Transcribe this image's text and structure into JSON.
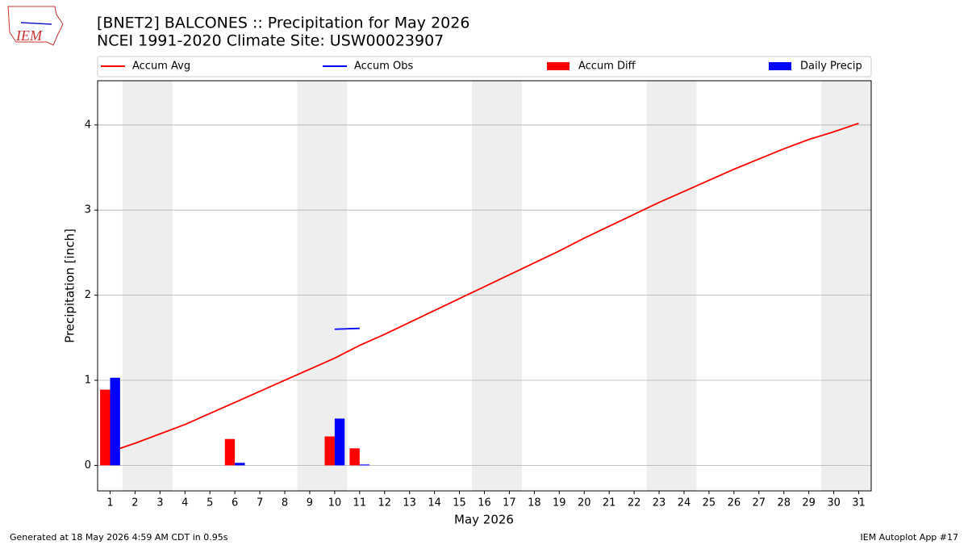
{
  "chart_data": {
    "type": "bar",
    "title": "[BNET2] BALCONES :: Precipitation for May 2026",
    "subtitle": "NCEI 1991-2020 Climate Site: USW00023907",
    "logo_text": "IEM",
    "xlabel": "May 2026",
    "ylabel": "Precipitation [inch]",
    "footer_left": "Generated at 18 May 2026 4:59 AM CDT in 0.95s",
    "footer_right": "IEM Autoplot App #17",
    "x": [
      1,
      2,
      3,
      4,
      5,
      6,
      7,
      8,
      9,
      10,
      11,
      12,
      13,
      14,
      15,
      16,
      17,
      18,
      19,
      20,
      21,
      22,
      23,
      24,
      25,
      26,
      27,
      28,
      29,
      30,
      31
    ],
    "xlim": [
      0.5,
      31.5
    ],
    "xticks": [
      1,
      2,
      3,
      4,
      5,
      6,
      7,
      8,
      9,
      10,
      11,
      12,
      13,
      14,
      15,
      16,
      17,
      18,
      19,
      20,
      21,
      22,
      23,
      24,
      25,
      26,
      27,
      28,
      29,
      30,
      31
    ],
    "ylim": [
      -0.3,
      4.52
    ],
    "yticks": [
      0,
      1,
      2,
      3,
      4
    ],
    "grid": true,
    "weekend_spans": [
      [
        1.5,
        3.5
      ],
      [
        8.5,
        10.5
      ],
      [
        15.5,
        17.5
      ],
      [
        22.5,
        24.5
      ],
      [
        29.5,
        31.5
      ]
    ],
    "series": [
      {
        "name": "Accum Avg",
        "color": "#ff0000",
        "type": "line",
        "values": [
          0.16,
          0.26,
          0.37,
          0.48,
          0.61,
          0.74,
          0.87,
          1.0,
          1.13,
          1.26,
          1.41,
          1.54,
          1.68,
          1.82,
          1.96,
          2.1,
          2.24,
          2.38,
          2.52,
          2.67,
          2.81,
          2.95,
          3.09,
          3.22,
          3.35,
          3.48,
          3.6,
          3.72,
          3.83,
          3.92,
          4.02
        ]
      },
      {
        "name": "Accum Obs",
        "color": "#0000ff",
        "type": "line",
        "values": [
          null,
          null,
          null,
          null,
          null,
          null,
          null,
          null,
          null,
          1.6,
          1.61,
          null,
          null,
          null,
          null,
          null,
          null,
          null,
          null,
          null,
          null,
          null,
          null,
          null,
          null,
          null,
          null,
          null,
          null,
          null,
          null
        ]
      },
      {
        "name": "Accum Diff",
        "color": "#ff0000",
        "type": "bar",
        "values": [
          0.89,
          null,
          null,
          null,
          null,
          0.31,
          null,
          null,
          null,
          0.34,
          0.2,
          null,
          null,
          null,
          null,
          null,
          null,
          null,
          null,
          null,
          null,
          null,
          null,
          null,
          null,
          null,
          null,
          null,
          null,
          null,
          null
        ]
      },
      {
        "name": "Daily Precip",
        "color": "#0000ff",
        "type": "bar",
        "values": [
          1.03,
          null,
          null,
          null,
          null,
          0.03,
          null,
          null,
          null,
          0.55,
          0.01,
          null,
          null,
          null,
          null,
          null,
          null,
          null,
          null,
          null,
          null,
          null,
          null,
          null,
          null,
          null,
          null,
          null,
          null,
          null,
          null
        ]
      }
    ]
  }
}
